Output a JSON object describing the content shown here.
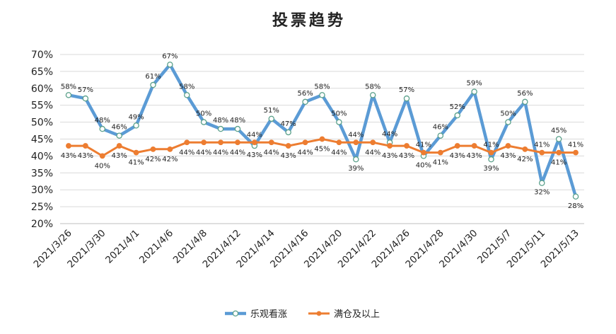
{
  "chart_data": {
    "type": "line",
    "title": "投票趋势",
    "xlabel": "",
    "ylabel": "",
    "ylim": [
      20,
      70
    ],
    "yticks": [
      "20%",
      "25%",
      "30%",
      "35%",
      "40%",
      "45%",
      "50%",
      "55%",
      "60%",
      "65%",
      "70%"
    ],
    "xtick_labels": [
      "2021/3/26",
      "2021/3/30",
      "2021/4/1",
      "2021/4/6",
      "2021/4/8",
      "2021/4/12",
      "2021/4/14",
      "2021/4/16",
      "2021/4/20",
      "2021/4/22",
      "2021/4/26",
      "2021/4/28",
      "2021/4/30",
      "2021/5/7",
      "2021/5/11",
      "2021/5/13"
    ],
    "x_count": 31,
    "grid": "horizontal",
    "legend_position": "bottom",
    "series": [
      {
        "name": "乐观看涨",
        "color": "#5b9bd5",
        "marker": "circle-hollow",
        "values": [
          58,
          57,
          48,
          46,
          49,
          61,
          67,
          58,
          50,
          48,
          48,
          43,
          51,
          47,
          56,
          58,
          50,
          39,
          58,
          44,
          57,
          40,
          46,
          52,
          59,
          39,
          50,
          56,
          32,
          45,
          28
        ],
        "labels": [
          "58%",
          "57%",
          "48%",
          "46%",
          "49%",
          "61%",
          "67%",
          "58%",
          "50%",
          "48%",
          "48%",
          "43%",
          "51%",
          "47%",
          "56%",
          "58%",
          "50%",
          "39%",
          "58%",
          "44%",
          "57%",
          "40%",
          "46%",
          "52%",
          "59%",
          "39%",
          "50%",
          "56%",
          "32%",
          "45%",
          "28%"
        ]
      },
      {
        "name": "满仓及以上",
        "color": "#ed7d31",
        "marker": "circle-filled",
        "values": [
          43,
          43,
          40,
          43,
          41,
          42,
          42,
          44,
          44,
          44,
          44,
          44,
          44,
          43,
          44,
          45,
          44,
          44,
          44,
          43,
          43,
          41,
          41,
          43,
          43,
          41,
          43,
          42,
          41,
          41,
          41
        ],
        "labels": [
          "43%",
          "43%",
          "40%",
          "43%",
          "41%",
          "42%",
          "42%",
          "44%",
          "44%",
          "44%",
          "44%",
          "44%",
          "44%",
          "43%",
          "44%",
          "45%",
          "44%",
          "44%",
          "44%",
          "43%",
          "43%",
          "41%",
          "41%",
          "43%",
          "43%",
          "41%",
          "43%",
          "42%",
          "41%",
          "41%",
          "41%"
        ]
      }
    ]
  }
}
